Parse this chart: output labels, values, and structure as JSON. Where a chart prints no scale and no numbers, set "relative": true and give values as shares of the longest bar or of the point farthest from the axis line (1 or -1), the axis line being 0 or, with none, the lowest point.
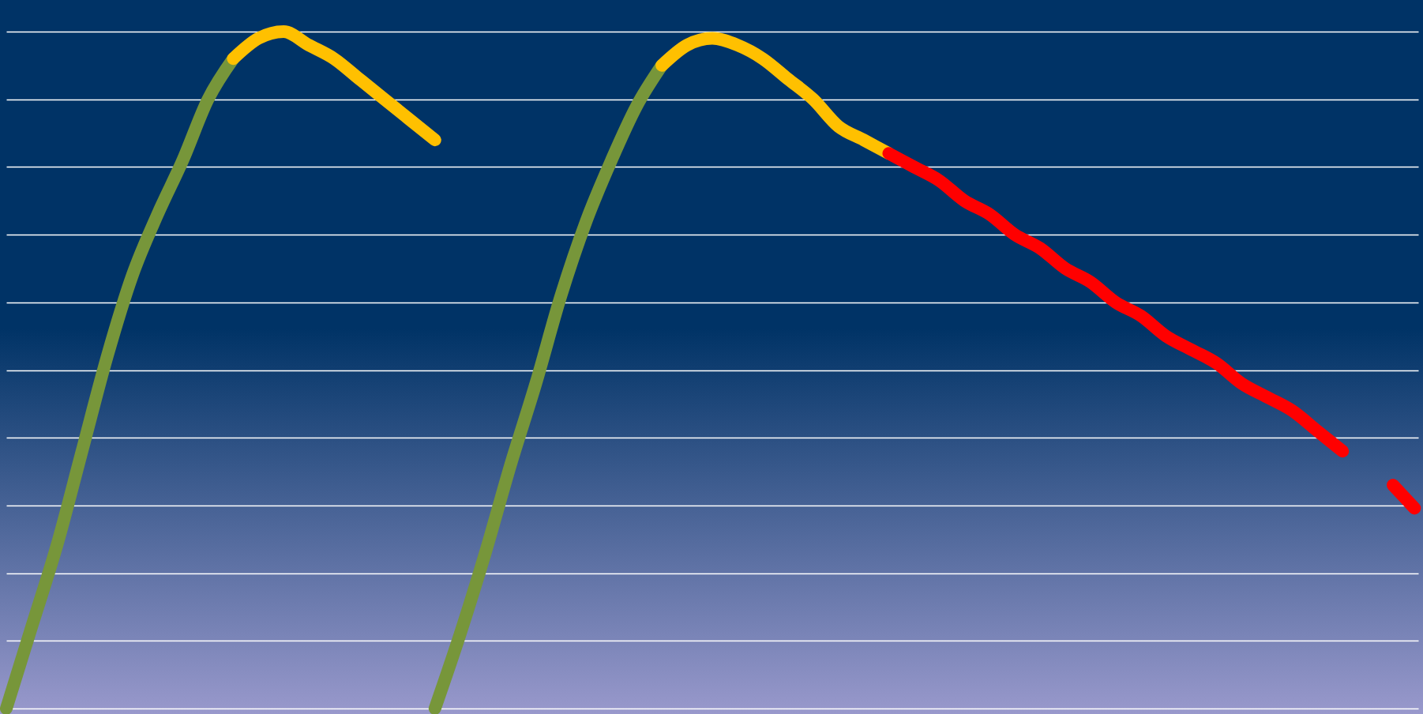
{
  "chart_data": {
    "type": "line",
    "relative": true,
    "grid": "y",
    "line_style": "solid",
    "marker": "none",
    "categories": [
      null,
      null,
      null,
      null,
      null,
      null,
      null,
      null,
      null,
      null,
      null,
      null,
      null,
      null,
      null,
      null,
      null,
      null,
      null,
      null,
      null,
      null,
      null,
      null,
      null,
      null,
      null,
      null,
      null,
      null,
      null,
      null,
      null,
      null,
      null,
      null,
      null,
      null,
      null,
      null,
      null,
      null,
      null,
      null,
      null,
      null,
      null,
      null,
      null,
      null,
      null,
      null,
      null,
      null,
      null,
      null,
      null
    ],
    "series": [
      {
        "color": "#77963a",
        "values": [
          0,
          0.12,
          0.24,
          0.38,
          0.52,
          0.64,
          0.73,
          0.81,
          0.9,
          0.96,
          null,
          null,
          null,
          null,
          null,
          null,
          null,
          null,
          null,
          null,
          null,
          null,
          null,
          null,
          null,
          null,
          null,
          null,
          null,
          null,
          null,
          null,
          null,
          null,
          null,
          null,
          null,
          null,
          null,
          null,
          null,
          null,
          null,
          null,
          null,
          null,
          null,
          null,
          null,
          null,
          null,
          null,
          null,
          null,
          null,
          null,
          null
        ]
      },
      {
        "color": "#ffc000",
        "values": [
          null,
          null,
          null,
          null,
          null,
          null,
          null,
          null,
          null,
          0.96,
          0.99,
          1,
          0.98,
          0.96,
          0.93,
          0.9,
          0.87,
          0.84,
          null,
          null,
          null,
          null,
          null,
          null,
          null,
          null,
          null,
          null,
          null,
          null,
          null,
          null,
          null,
          null,
          null,
          null,
          null,
          null,
          null,
          null,
          null,
          null,
          null,
          null,
          null,
          null,
          null,
          null,
          null,
          null,
          null,
          null,
          null,
          null,
          null,
          null,
          null
        ]
      },
      {
        "color": "#77963a",
        "values": [
          null,
          null,
          null,
          null,
          null,
          null,
          null,
          null,
          null,
          null,
          null,
          null,
          null,
          null,
          null,
          null,
          null,
          0,
          0.11,
          0.23,
          0.36,
          0.48,
          0.61,
          0.72,
          0.81,
          0.89,
          0.95,
          null,
          null,
          null,
          null,
          null,
          null,
          null,
          null,
          null,
          null,
          null,
          null,
          null,
          null,
          null,
          null,
          null,
          null,
          null,
          null,
          null,
          null,
          null,
          null,
          null,
          null,
          null,
          null,
          null,
          null
        ]
      },
      {
        "color": "#ffc000",
        "values": [
          null,
          null,
          null,
          null,
          null,
          null,
          null,
          null,
          null,
          null,
          null,
          null,
          null,
          null,
          null,
          null,
          null,
          null,
          null,
          null,
          null,
          null,
          null,
          null,
          null,
          null,
          0.95,
          0.98,
          0.99,
          0.98,
          0.96,
          0.93,
          0.9,
          0.86,
          0.84,
          0.82,
          null,
          null,
          null,
          null,
          null,
          null,
          null,
          null,
          null,
          null,
          null,
          null,
          null,
          null,
          null,
          null,
          null,
          null,
          null,
          null,
          null
        ]
      },
      {
        "color": "#ff0000",
        "values": [
          null,
          null,
          null,
          null,
          null,
          null,
          null,
          null,
          null,
          null,
          null,
          null,
          null,
          null,
          null,
          null,
          null,
          null,
          null,
          null,
          null,
          null,
          null,
          null,
          null,
          null,
          null,
          null,
          null,
          null,
          null,
          null,
          null,
          null,
          null,
          0.82,
          0.8,
          0.78,
          0.75,
          0.73,
          0.7,
          0.68,
          0.65,
          0.63,
          0.6,
          0.58,
          0.55,
          0.53,
          0.51,
          0.48,
          0.46,
          0.44,
          0.41,
          0.38,
          null,
          null,
          null
        ]
      },
      {
        "color": "#ff0000",
        "line_style": "dashed",
        "values": [
          null,
          null,
          null,
          null,
          null,
          null,
          null,
          null,
          null,
          null,
          null,
          null,
          null,
          null,
          null,
          null,
          null,
          null,
          null,
          null,
          null,
          null,
          null,
          null,
          null,
          null,
          null,
          null,
          null,
          null,
          null,
          null,
          null,
          null,
          null,
          null,
          null,
          null,
          null,
          null,
          null,
          null,
          null,
          null,
          null,
          null,
          null,
          null,
          null,
          null,
          null,
          null,
          null,
          null,
          null,
          0.33,
          0.29
        ]
      }
    ]
  }
}
